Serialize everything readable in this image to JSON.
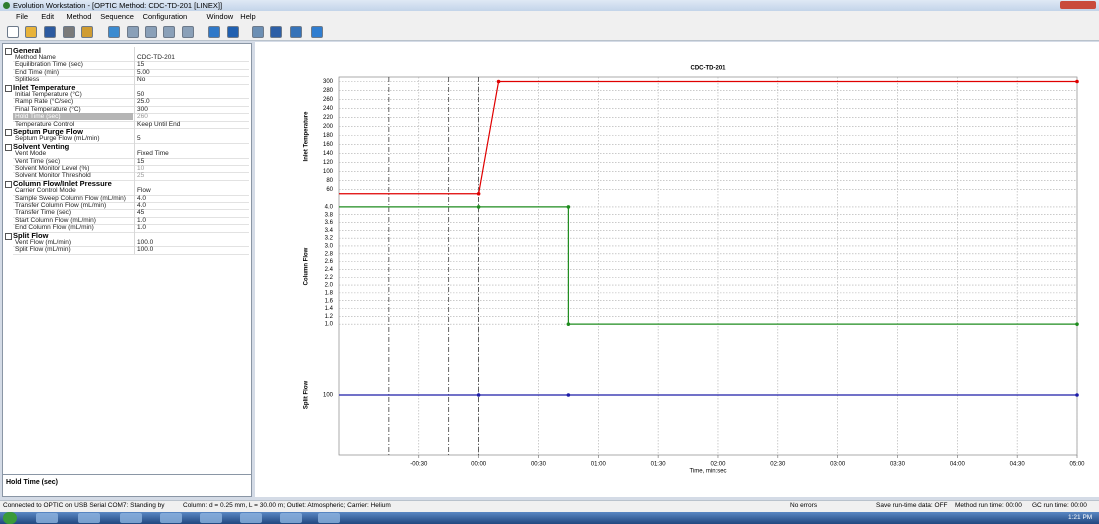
{
  "window_title": "Evolution Workstation - [OPTIC Method: CDC-TD-201 [LINEX]]",
  "menu": [
    "File",
    "Edit",
    "Method",
    "Sequence",
    "Configuration",
    "Window",
    "Help"
  ],
  "property_grid": {
    "sections": [
      {
        "title": "General",
        "rows": [
          [
            "Method Name",
            "CDC-TD-201"
          ],
          [
            "Equilibration Time (sec)",
            "15"
          ],
          [
            "End Time (min)",
            "5.00"
          ],
          [
            "Splitless",
            "No"
          ]
        ]
      },
      {
        "title": "Inlet Temperature",
        "rows": [
          [
            "Initial Temperature (°C)",
            "50"
          ],
          [
            "Ramp Rate (°C/sec)",
            "25.0"
          ],
          [
            "Final Temperature (°C)",
            "300"
          ],
          [
            "Hold Time (sec)",
            "260"
          ],
          [
            "Temperature Control",
            "Keep Until End"
          ]
        ]
      },
      {
        "title": "Septum Purge Flow",
        "rows": [
          [
            "Septum Purge Flow (mL/min)",
            "5"
          ]
        ]
      },
      {
        "title": "Solvent Venting",
        "rows": [
          [
            "Vent Mode",
            "Fixed Time"
          ],
          [
            "Vent Time (sec)",
            "15"
          ],
          [
            "Solvent Monitor Level (%)",
            "10"
          ],
          [
            "Solvent Monitor Threshold",
            "25"
          ]
        ]
      },
      {
        "title": "Column Flow/Inlet Pressure",
        "rows": [
          [
            "Carrier Control Mode",
            "Flow"
          ],
          [
            "Sample Sweep Column Flow (mL/min)",
            "4.0"
          ],
          [
            "Transfer Column Flow (mL/min)",
            "4.0"
          ],
          [
            "Transfer Time (sec)",
            "45"
          ],
          [
            "Start Column Flow (mL/min)",
            "1.0"
          ],
          [
            "End Column Flow (mL/min)",
            "1.0"
          ]
        ]
      },
      {
        "title": "Split Flow",
        "rows": [
          [
            "Vent Flow (mL/min)",
            "100.0"
          ],
          [
            "Split Flow (mL/min)",
            "100.0"
          ]
        ]
      }
    ],
    "description": "Hold Time (sec)"
  },
  "chart": {
    "type": "line",
    "title": "CDC-TD-201",
    "x_label": "Time, min:sec",
    "xlim": [
      -70,
      300
    ],
    "xticks": [
      {
        "value": -30,
        "label": "-00:30"
      },
      {
        "value": 0,
        "label": "00:00"
      },
      {
        "value": 30,
        "label": "00:30"
      },
      {
        "value": 60,
        "label": "01:00"
      },
      {
        "value": 90,
        "label": "01:30"
      },
      {
        "value": 120,
        "label": "02:00"
      },
      {
        "value": 150,
        "label": "02:30"
      },
      {
        "value": 180,
        "label": "03:00"
      },
      {
        "value": 210,
        "label": "03:30"
      },
      {
        "value": 240,
        "label": "04:00"
      },
      {
        "value": 270,
        "label": "04:30"
      },
      {
        "value": 300,
        "label": "05:00"
      }
    ],
    "event_lines": [
      -45,
      -15,
      0
    ],
    "grid": true,
    "panels": [
      {
        "y_label": "Inlet Temperature",
        "ylim": [
          45,
          310
        ],
        "yticks": [
          60,
          80,
          100,
          120,
          140,
          160,
          180,
          200,
          220,
          240,
          260,
          280,
          300
        ],
        "series": [
          {
            "color": "#e00000",
            "x": [
              -70,
              0,
              10,
              300
            ],
            "values": [
              50,
              50,
              300,
              300
            ]
          }
        ]
      },
      {
        "y_label": "Column Flow",
        "ylim": [
          0.85,
          4.1
        ],
        "yticks": [
          {
            "value": 1,
            "label": "1.0"
          },
          {
            "value": 1.2,
            "label": "1.2"
          },
          {
            "value": 1.4,
            "label": "1.4"
          },
          {
            "value": 1.6,
            "label": "1.6"
          },
          {
            "value": 1.8,
            "label": "1.8"
          },
          {
            "value": 2,
            "label": "2.0"
          },
          {
            "value": 2.2,
            "label": "2.2"
          },
          {
            "value": 2.4,
            "label": "2.4"
          },
          {
            "value": 2.6,
            "label": "2.6"
          },
          {
            "value": 2.8,
            "label": "2.8"
          },
          {
            "value": 3,
            "label": "3.0"
          },
          {
            "value": 3.2,
            "label": "3.2"
          },
          {
            "value": 3.4,
            "label": "3.4"
          },
          {
            "value": 3.6,
            "label": "3.6"
          },
          {
            "value": 3.8,
            "label": "3.8"
          },
          {
            "value": 4,
            "label": "4.0"
          }
        ],
        "series": [
          {
            "color": "#1e8c1e",
            "x": [
              -70,
              0,
              45,
              45,
              300
            ],
            "values": [
              4,
              4,
              4,
              1,
              1
            ]
          }
        ]
      },
      {
        "y_label": "Split Flow",
        "ylim": [
          50,
          150
        ],
        "yticks": [
          100
        ],
        "series": [
          {
            "color": "#1c1ca8",
            "x": [
              -70,
              0,
              45,
              300
            ],
            "values": [
              100,
              100,
              100,
              100
            ]
          }
        ]
      }
    ]
  },
  "status_bar": [
    "Connected to OPTIC on USB Serial COM7: Standing by",
    "Column: d = 0.25 mm, L = 30.00 m; Outlet: Atmospheric; Carrier: Helium",
    "No errors",
    "Save run-time data: OFF",
    "Method run time: 00:00",
    "GC run time: 00:00"
  ],
  "clock": "1:21 PM"
}
